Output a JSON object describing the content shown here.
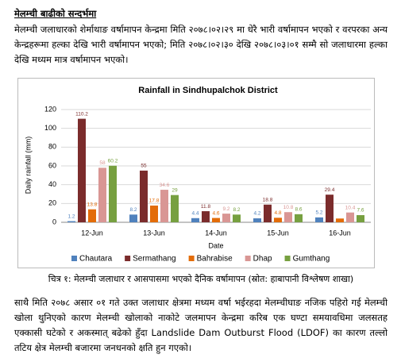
{
  "heading": "मेलम्ची बाढीको सन्दर्भमा",
  "paragraphs": [
    "मेलम्ची जलाधारको शेर्माथाङ वर्षामापन केन्द्रमा मिति २०७८।०२।२९ मा धेरै भारी वर्षामापन भएको र वरपरका अन्य केन्द्रहरूमा हल्का देखि भारी वर्षामापन भएको; मिति २०७८।०२।३० देखि २०७८।०३।०१ सम्मै सो जलाधारमा हल्का देखि मध्यम मात्र वर्षामापन भएको।",
    "साथै मिति २०७८ असार ०१ गते उक्त जलाधार क्षेत्रमा मध्यम वर्षा भईरहदा मेलम्चीघाङ नजिक पहिरो गई मेलम्ची खोला थुनिएको कारण मेलम्ची खोलाको नाकोटे जलमापन केन्द्रमा करिब एक घण्टा समयावधिमा जलसतह एक्कासी घटेको र अकस्मात् बढेको हुँदा Landslide Dam Outburst Flood (LDOF) का कारण तल्लो तटिय क्षेत्र मेलम्ची बजारमा जनधनको क्षति हुन गएको।"
  ],
  "caption": "चित्र १: मेलम्ची जलाधार र आसपासमा भएको दैनिक वर्षामापन (स्रोत: हाबापानी विश्लेषण शाखा)",
  "chart_data": {
    "type": "bar",
    "title": "Rainfall in Sindhupalchok District",
    "y_label": "Daily rainfall (mm)",
    "x_label": "Date",
    "categories": [
      "12-Jun",
      "13-Jun",
      "14-Jun",
      "15-Jun",
      "16-Jun"
    ],
    "series": [
      {
        "name": "Chautara",
        "color": "#4f81bd",
        "values": [
          1.2,
          8.2,
          4.4,
          4.2,
          5.2
        ]
      },
      {
        "name": "Sermathang",
        "color": "#7b2c2c",
        "values": [
          110.2,
          55,
          11.8,
          18.8,
          29.4
        ]
      },
      {
        "name": "Bahrabise",
        "color": "#e36c09",
        "values": [
          13.8,
          17.8,
          4.6,
          4.8,
          4
        ],
        "value_labels": [
          "13.8",
          "17.8",
          "4.6",
          "4.8",
          null
        ]
      },
      {
        "name": "Dhap",
        "color": "#d99694",
        "values": [
          58,
          34.6,
          9.2,
          10.8,
          10.4
        ]
      },
      {
        "name": "Gumthang",
        "color": "#77a040",
        "values": [
          60.2,
          29,
          8.2,
          8.6,
          7.6
        ]
      }
    ],
    "ylim": [
      0,
      120
    ],
    "yticks": [
      0,
      20,
      40,
      60,
      80,
      100,
      120
    ],
    "grid": true,
    "legend": "bottom"
  }
}
